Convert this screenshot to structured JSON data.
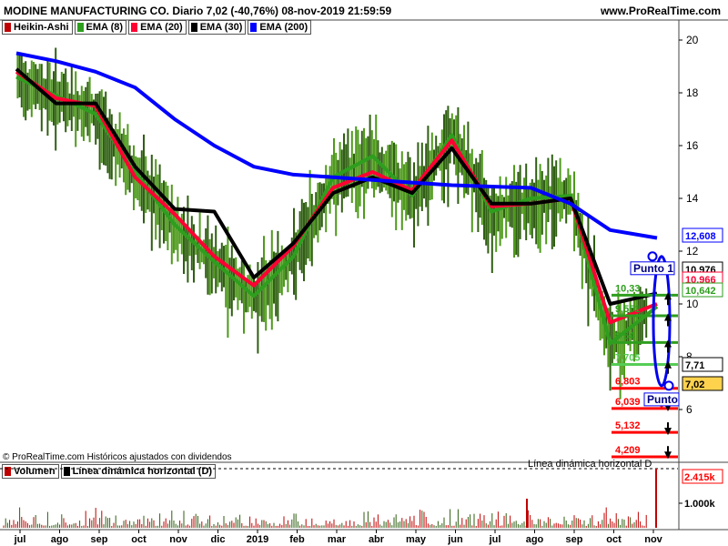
{
  "header": {
    "title": "MODINE MANUFACTURING CO. Diario 7,02 (-40,76%) 08-nov-2019 21:59:59",
    "site": "www.ProRealTime.com"
  },
  "legend": [
    {
      "label": "Heikin-Ashi",
      "color": "#c00000"
    },
    {
      "label": "EMA (8)",
      "color": "#2e9e1e"
    },
    {
      "label": "EMA (20)",
      "color": "#ff0033"
    },
    {
      "label": "EMA (30)",
      "color": "#000000"
    },
    {
      "label": "EMA (200)",
      "color": "#0000ff"
    }
  ],
  "volume_legend": [
    {
      "label": "Volumen",
      "color": "#c00000"
    },
    {
      "label": "Línea dinámica horizontal (D)",
      "color": "#000000"
    }
  ],
  "copyright": "© ProRealTime.com  Históricos ajustados con dividendos",
  "chart_data": {
    "type": "line",
    "x": [
      "jul",
      "ago",
      "sep",
      "oct",
      "nov",
      "dic",
      "2019",
      "feb",
      "mar",
      "abr",
      "may",
      "jun",
      "jul",
      "ago",
      "sep",
      "oct",
      "nov"
    ],
    "ylim": [
      3.9,
      20.8
    ],
    "y_ticks": [
      20,
      18,
      16,
      14,
      12,
      10,
      8,
      6
    ],
    "series": [
      {
        "name": "EMA (8)",
        "color": "#2e9e1e",
        "values": [
          18.6,
          17.9,
          17.2,
          15.0,
          13.0,
          11.6,
          10.3,
          11.8,
          14.8,
          15.6,
          14.1,
          16.4,
          13.5,
          14.0,
          14.1,
          8.5,
          9.9
        ]
      },
      {
        "name": "EMA (20)",
        "color": "#ff0033",
        "values": [
          18.8,
          17.8,
          17.5,
          14.8,
          13.4,
          11.8,
          10.7,
          12.2,
          14.4,
          15.0,
          14.3,
          16.2,
          13.7,
          13.8,
          14.0,
          9.3,
          10.0
        ]
      },
      {
        "name": "EMA (30)",
        "color": "#000000",
        "values": [
          18.9,
          17.6,
          17.6,
          15.2,
          13.6,
          13.5,
          11.0,
          12.3,
          14.2,
          14.8,
          14.2,
          15.9,
          13.8,
          13.8,
          14.0,
          10.0,
          10.4
        ]
      },
      {
        "name": "EMA (200)",
        "color": "#0000ff",
        "values": [
          19.5,
          19.2,
          18.8,
          18.2,
          17.0,
          16.0,
          15.2,
          14.9,
          14.8,
          14.7,
          14.6,
          14.5,
          14.45,
          14.4,
          13.8,
          12.8,
          12.5
        ]
      }
    ],
    "price_labels": [
      {
        "value": "12,608",
        "color": "#0000ff"
      },
      {
        "value": "10,976",
        "color": "#000000"
      },
      {
        "value": "10,966",
        "color": "#ff0033"
      },
      {
        "value": "10,642",
        "color": "#2e9e1e"
      },
      {
        "value": "7,71",
        "color": "#000000"
      },
      {
        "value": "7,02",
        "color": "#000000",
        "bg": "#ffd24d"
      }
    ],
    "levels": [
      {
        "label": "10,33",
        "value": 10.33,
        "color": "#2e9e1e"
      },
      {
        "label": "9,551",
        "value": 9.551,
        "color": "#2e9e1e"
      },
      {
        "label": "8,54",
        "value": 8.54,
        "color": "#2e9e1e"
      },
      {
        "label": "7,705",
        "value": 7.705,
        "color": "#55cc55"
      },
      {
        "label": "6,803",
        "value": 6.803,
        "color": "#ff0000"
      },
      {
        "label": "6,039",
        "value": 6.039,
        "color": "#ff0000"
      },
      {
        "label": "5,132",
        "value": 5.132,
        "color": "#ff0000"
      },
      {
        "label": "4,209",
        "value": 4.209,
        "color": "#ff0000"
      }
    ],
    "annotations": [
      {
        "text": "Punto 1",
        "price": 11.8
      },
      {
        "text": "Punto",
        "price": 6.9
      }
    ],
    "volume": {
      "ticks": [
        "2.415k",
        "1.000k"
      ],
      "current_label": "2.415k",
      "line_label": "Línea dinámica horizontal D"
    }
  }
}
